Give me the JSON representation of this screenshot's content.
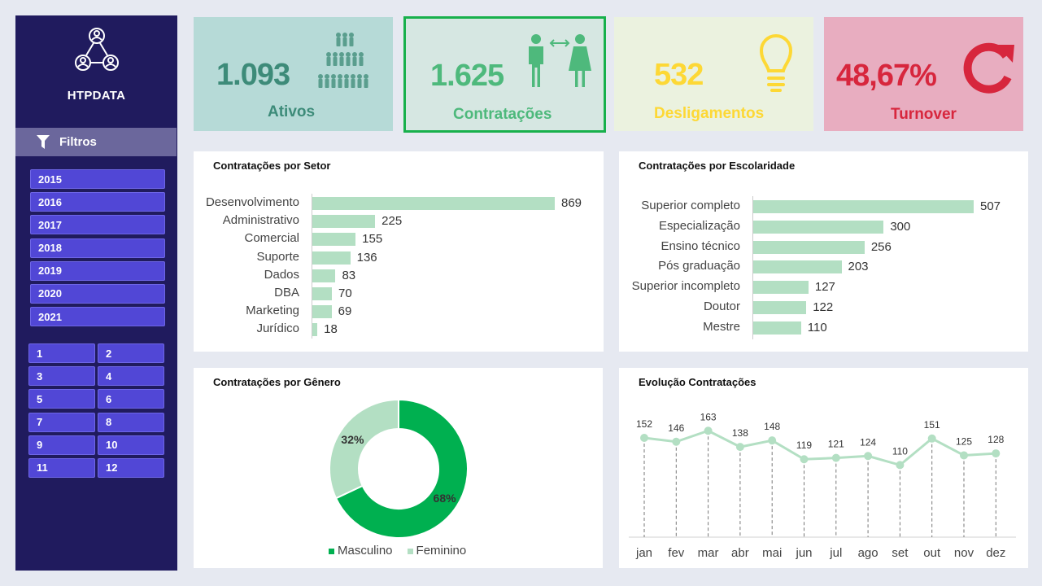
{
  "sidebar": {
    "brand": "HTPDATA",
    "filter_label": "Filtros",
    "years": [
      "2015",
      "2016",
      "2017",
      "2018",
      "2019",
      "2020",
      "2021"
    ],
    "months": [
      "1",
      "2",
      "3",
      "4",
      "5",
      "6",
      "7",
      "8",
      "9",
      "10",
      "11",
      "12"
    ]
  },
  "kpis": {
    "ativos": {
      "value": "1.093",
      "label": "Ativos"
    },
    "contratacoes": {
      "value": "1.625",
      "label": "Contratações"
    },
    "desligamentos": {
      "value": "532",
      "label": "Desligamentos"
    },
    "turnover": {
      "value": "48,67%",
      "label": "Turnover"
    }
  },
  "colors": {
    "sidebar_bg": "#201b5e",
    "button": "#5147d6",
    "bar": "#b3dfc3",
    "masculino": "#00b050",
    "feminino": "#b3dfc3",
    "turnover": "#d7263d",
    "desligamentos": "#ffd84d"
  },
  "chart_data": [
    {
      "type": "bar",
      "title": "Contratações por Setor",
      "categories": [
        "Desenvolvimento",
        "Administrativo",
        "Comercial",
        "Suporte",
        "Dados",
        "DBA",
        "Marketing",
        "Jurídico"
      ],
      "values": [
        869,
        225,
        155,
        136,
        83,
        70,
        69,
        18
      ]
    },
    {
      "type": "bar",
      "title": "Contratações por Escolaridade",
      "categories": [
        "Superior completo",
        "Especialização",
        "Ensino técnico",
        "Pós graduação",
        "Superior incompleto",
        "Doutor",
        "Mestre"
      ],
      "values": [
        507,
        300,
        256,
        203,
        127,
        122,
        110
      ]
    },
    {
      "type": "pie",
      "title": "Contratações por Gênero",
      "labels": [
        "Masculino",
        "Feminino"
      ],
      "values": [
        68,
        32
      ],
      "value_labels": [
        "68%",
        "32%"
      ],
      "legend": "bottom"
    },
    {
      "type": "line",
      "title": "Evolução Contratações",
      "x": [
        "jan",
        "fev",
        "mar",
        "abr",
        "mai",
        "jun",
        "jul",
        "ago",
        "set",
        "out",
        "nov",
        "dez"
      ],
      "values": [
        152,
        146,
        163,
        138,
        148,
        119,
        121,
        124,
        110,
        151,
        125,
        128
      ]
    }
  ]
}
